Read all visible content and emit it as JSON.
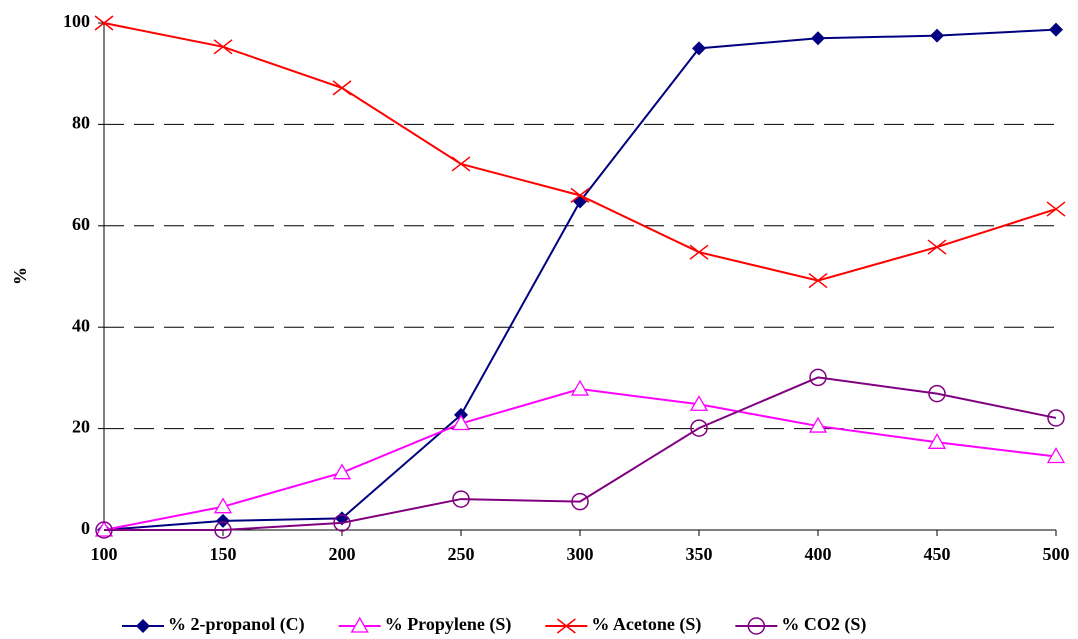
{
  "chart_data": {
    "type": "line",
    "y_label": "%",
    "x": [
      100,
      150,
      200,
      250,
      300,
      350,
      400,
      450,
      500
    ],
    "xlim": [
      100,
      500
    ],
    "xticks": [
      100,
      150,
      200,
      250,
      300,
      350,
      400,
      450,
      500
    ],
    "ylim": [
      0,
      100
    ],
    "yticks": [
      0,
      20,
      40,
      60,
      80,
      100
    ],
    "grid": true,
    "legend": "bottom",
    "series": [
      {
        "name": "% 2-propanol (C)",
        "color": "#000080",
        "marker": "diamond",
        "values": [
          0,
          1.8,
          2.3,
          22.7,
          64.8,
          95,
          97,
          97.5,
          98.7
        ]
      },
      {
        "name": "% Propylene (S)",
        "color": "#ff00ff",
        "marker": "triangle",
        "values": [
          0,
          4.6,
          11.3,
          21,
          27.8,
          24.8,
          20.5,
          17.3,
          14.5
        ]
      },
      {
        "name": "% Acetone (S)",
        "color": "#ff0000",
        "marker": "x",
        "values": [
          100,
          95.3,
          87.2,
          72.2,
          66,
          54.8,
          49.2,
          55.8,
          63.3
        ]
      },
      {
        "name": "% CO2 (S)",
        "color": "#800080",
        "marker": "circle",
        "values": [
          0,
          0,
          1.4,
          6.1,
          5.6,
          20.1,
          30.1,
          26.9,
          22.1
        ]
      }
    ]
  }
}
